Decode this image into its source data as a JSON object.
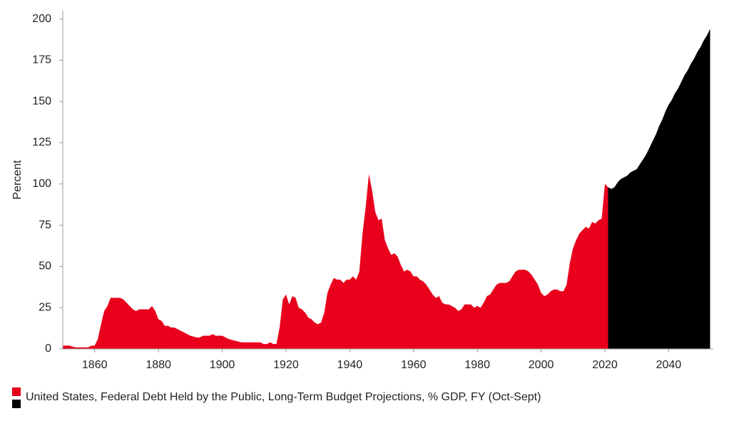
{
  "chart_data": {
    "type": "area",
    "y_label": "Percent",
    "legend_label": "United States, Federal Debt Held by the Public, Long-Term Budget Projections, % GDP, FY (Oct-Sept)",
    "xlim": [
      1850,
      2054
    ],
    "ylim": [
      0,
      205
    ],
    "xticks": [
      1860,
      1880,
      1900,
      1920,
      1940,
      1960,
      1980,
      2000,
      2020,
      2040
    ],
    "yticks": [
      0,
      25,
      50,
      75,
      100,
      125,
      150,
      175,
      200
    ],
    "series": [
      {
        "color": "#e8001c",
        "x": [
          1850,
          1852,
          1854,
          1856,
          1858,
          1859,
          1860,
          1861,
          1862,
          1863,
          1864,
          1865,
          1866,
          1867,
          1868,
          1869,
          1870,
          1871,
          1872,
          1873,
          1874,
          1875,
          1876,
          1877,
          1878,
          1879,
          1880,
          1881,
          1882,
          1883,
          1884,
          1885,
          1886,
          1888,
          1890,
          1892,
          1893,
          1894,
          1896,
          1897,
          1898,
          1900,
          1902,
          1904,
          1906,
          1908,
          1910,
          1912,
          1913,
          1914,
          1915,
          1916,
          1917,
          1918,
          1919,
          1920,
          1921,
          1922,
          1923,
          1924,
          1925,
          1926,
          1927,
          1928,
          1929,
          1930,
          1931,
          1932,
          1933,
          1934,
          1935,
          1936,
          1937,
          1938,
          1939,
          1940,
          1941,
          1942,
          1943,
          1944,
          1945,
          1946,
          1947,
          1948,
          1949,
          1950,
          1951,
          1952,
          1953,
          1954,
          1955,
          1956,
          1957,
          1958,
          1959,
          1960,
          1961,
          1962,
          1963,
          1964,
          1965,
          1966,
          1967,
          1968,
          1969,
          1970,
          1971,
          1972,
          1973,
          1974,
          1975,
          1976,
          1977,
          1978,
          1979,
          1980,
          1981,
          1982,
          1983,
          1984,
          1985,
          1986,
          1987,
          1988,
          1989,
          1990,
          1991,
          1992,
          1993,
          1994,
          1995,
          1996,
          1997,
          1998,
          1999,
          2000,
          2001,
          2002,
          2003,
          2004,
          2005,
          2006,
          2007,
          2008,
          2009,
          2010,
          2011,
          2012,
          2013,
          2014,
          2015,
          2016,
          2017,
          2018,
          2019,
          2020,
          2021
        ],
        "values": [
          2,
          2,
          1,
          1,
          1,
          2,
          2,
          6,
          15,
          23,
          26,
          31,
          31,
          31,
          31,
          30,
          28,
          26,
          24,
          23,
          24,
          24,
          24,
          24,
          26,
          23,
          18,
          17,
          14,
          14,
          13,
          13,
          12,
          10,
          8,
          7,
          7,
          8,
          8,
          9,
          8,
          8,
          6,
          5,
          4,
          4,
          4,
          4,
          3,
          3,
          4,
          3,
          3,
          13,
          30,
          33,
          27,
          32,
          31,
          25,
          24,
          22,
          19,
          18,
          16,
          15,
          16,
          22,
          34,
          39,
          43,
          42,
          42,
          40,
          42,
          42,
          44,
          42,
          47,
          70,
          86,
          106,
          96,
          83,
          78,
          79,
          66,
          61,
          57,
          58,
          56,
          51,
          47,
          48,
          47,
          44,
          44,
          42,
          41,
          39,
          36,
          33,
          31,
          32,
          28,
          27,
          27,
          26,
          25,
          23,
          24,
          27,
          27,
          27,
          25,
          26,
          25,
          28,
          32,
          33,
          36,
          39,
          40,
          40,
          40,
          41,
          44,
          47,
          48,
          48,
          48,
          47,
          45,
          42,
          39,
          34,
          32,
          33,
          35,
          36,
          36,
          35,
          35,
          39,
          52,
          61,
          66,
          70,
          72,
          74,
          73,
          77,
          76,
          78,
          79,
          100,
          98
        ]
      },
      {
        "color": "#000000",
        "x": [
          2021,
          2022,
          2023,
          2024,
          2025,
          2026,
          2027,
          2028,
          2029,
          2030,
          2031,
          2032,
          2033,
          2034,
          2035,
          2036,
          2037,
          2038,
          2039,
          2040,
          2041,
          2042,
          2043,
          2044,
          2045,
          2046,
          2047,
          2048,
          2049,
          2050,
          2051,
          2052,
          2053
        ],
        "values": [
          98,
          97,
          98,
          101,
          103,
          104,
          105,
          107,
          108,
          109,
          112,
          115,
          118,
          122,
          126,
          130,
          135,
          139,
          144,
          148,
          151,
          155,
          158,
          162,
          166,
          169,
          173,
          176,
          180,
          183,
          187,
          190,
          194
        ]
      }
    ]
  }
}
